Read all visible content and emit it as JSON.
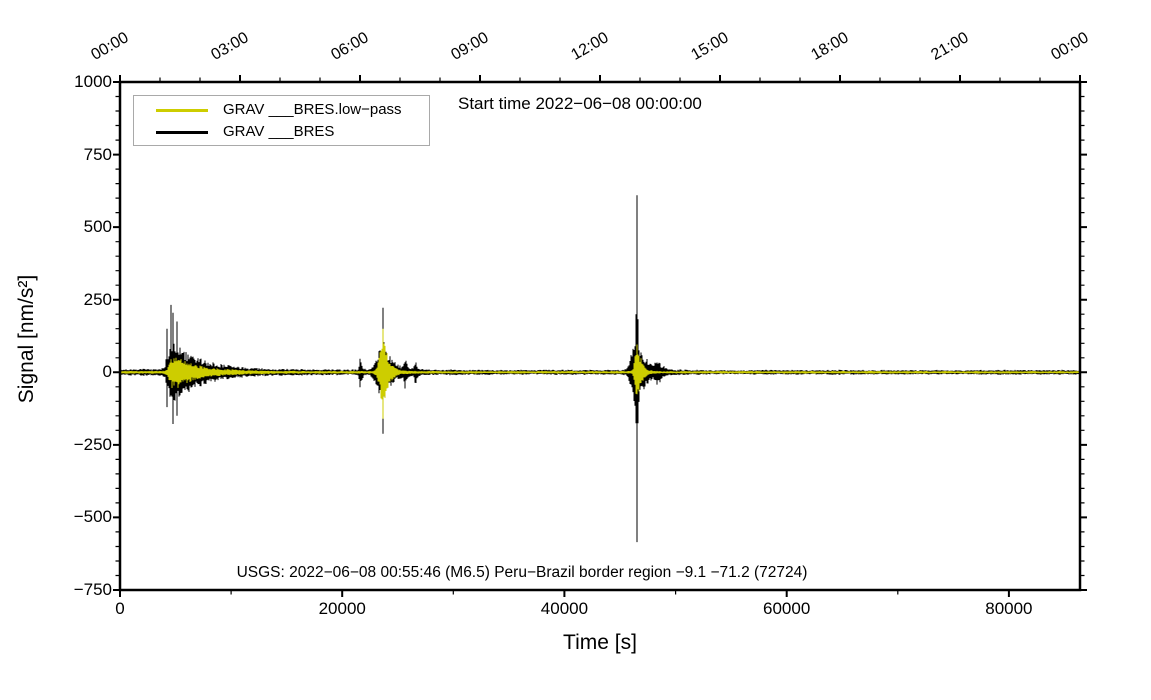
{
  "figure": {
    "background": "#ffffff"
  },
  "chart_data": {
    "type": "line",
    "subtype": "seismogram-minmax-envelope",
    "start_time_note": "Start time 2022−06−08 00:00:00",
    "usgs_annotation": "USGS: 2022−06−08 00:55:46 (M6.5) Peru−Brazil border region −9.1 −71.2 (72724)",
    "xlabel": "Time [s]",
    "ylabel": "Signal [nm/s²]",
    "xlim": [
      0,
      86400
    ],
    "ylim": [
      -750,
      1000
    ],
    "grid": false,
    "x_axis": {
      "major_ticks": [
        0,
        20000,
        40000,
        60000,
        80000
      ],
      "major_labels": [
        "0",
        "20000",
        "40000",
        "60000",
        "80000"
      ],
      "minor_step": 10000
    },
    "y_axis": {
      "major_ticks": [
        1000,
        750,
        500,
        250,
        0,
        -250,
        -500,
        -750
      ],
      "major_labels": [
        "1000",
        "750",
        "500",
        "250",
        "0",
        "−250",
        "−500",
        "−750"
      ],
      "minor_step": 50
    },
    "top_axis": {
      "major_step_s": 10800,
      "minor_step_s": 3600,
      "labels": [
        "00:00",
        "03:00",
        "06:00",
        "09:00",
        "12:00",
        "15:00",
        "18:00",
        "21:00",
        "00:00"
      ]
    },
    "legend": {
      "position": "top-left",
      "entries": [
        {
          "label": "GRAV ___BRES.low−pass",
          "color": "#cdcd00"
        },
        {
          "label": "GRAV ___BRES",
          "color": "#000000"
        }
      ]
    },
    "noise_seed": 7,
    "series": [
      {
        "name": "GRAV ___BRES",
        "color": "#000000",
        "draw_order": 1,
        "base_amplitude_nodes": [
          {
            "t": 0,
            "a": 11
          },
          {
            "t": 3500,
            "a": 11
          },
          {
            "t": 12000,
            "a": 10
          },
          {
            "t": 30000,
            "a": 9
          },
          {
            "t": 60000,
            "a": 8
          },
          {
            "t": 86400,
            "a": 8
          }
        ],
        "event_envelopes": [
          {
            "t0": 4700,
            "amp": 92,
            "rise": 500,
            "decay": 2600
          },
          {
            "t0": 21600,
            "amp": 45,
            "rise": 120,
            "decay": 180
          },
          {
            "t0": 23760,
            "amp": 95,
            "rise": 700,
            "decay": 800
          },
          {
            "t0": 25650,
            "amp": 40,
            "rise": 100,
            "decay": 160
          },
          {
            "t0": 26600,
            "amp": 30,
            "rise": 120,
            "decay": 200
          },
          {
            "t0": 46570,
            "amp": 125,
            "rise": 600,
            "decay": 700
          },
          {
            "t0": 48400,
            "amp": 32,
            "rise": 300,
            "decay": 450
          }
        ],
        "spikes": [
          {
            "t": 4250,
            "up": 150,
            "down": -120
          },
          {
            "t": 4550,
            "up": 232,
            "down": -80
          },
          {
            "t": 4750,
            "up": 205,
            "down": -178
          },
          {
            "t": 5150,
            "up": 175,
            "down": -150
          },
          {
            "t": 23700,
            "up": 222,
            "down": -212
          },
          {
            "t": 46450,
            "up": 200,
            "down": -120
          },
          {
            "t": 46570,
            "up": 610,
            "down": -585
          }
        ]
      },
      {
        "name": "GRAV ___BRES.low-pass",
        "color": "#cdcd00",
        "draw_order": 2,
        "base_amplitude_nodes": [
          {
            "t": 0,
            "a": 5
          },
          {
            "t": 86400,
            "a": 4
          }
        ],
        "event_envelopes": [
          {
            "t0": 4800,
            "amp": 55,
            "rise": 400,
            "decay": 2200
          },
          {
            "t0": 23740,
            "amp": 105,
            "rise": 450,
            "decay": 500
          },
          {
            "t0": 46570,
            "amp": 100,
            "rise": 280,
            "decay": 380
          }
        ],
        "spikes": [
          {
            "t": 23700,
            "up": 150,
            "down": -160
          }
        ]
      }
    ]
  }
}
